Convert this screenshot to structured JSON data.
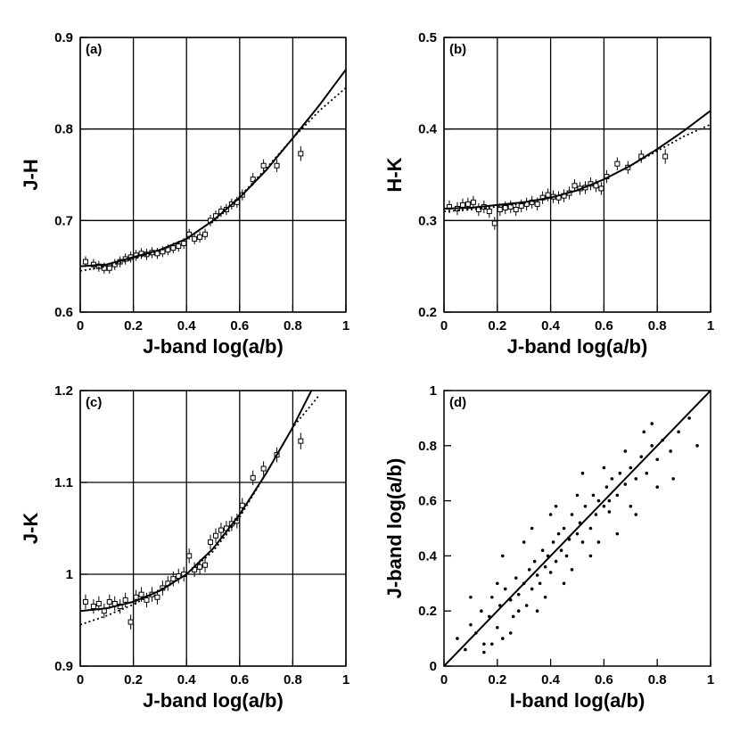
{
  "chart_data": [
    {
      "type": "errorbar",
      "panel_label": "(a)",
      "xlabel": "J-band log(a/b)",
      "ylabel": "J-H",
      "xlim": [
        0,
        1
      ],
      "ylim": [
        0.6,
        0.9
      ],
      "xticks": [
        0,
        0.2,
        0.4,
        0.6,
        0.8,
        1
      ],
      "yticks": [
        0.6,
        0.7,
        0.8,
        0.9
      ],
      "grid": true,
      "color": "#000000",
      "series": [
        {
          "style": "errorbar",
          "x": [
            0.02,
            0.05,
            0.07,
            0.09,
            0.11,
            0.13,
            0.15,
            0.17,
            0.19,
            0.21,
            0.23,
            0.25,
            0.27,
            0.29,
            0.31,
            0.33,
            0.35,
            0.37,
            0.39,
            0.41,
            0.43,
            0.45,
            0.47,
            0.49,
            0.51,
            0.53,
            0.55,
            0.57,
            0.59,
            0.61,
            0.65,
            0.69,
            0.74,
            0.83
          ],
          "values": [
            0.655,
            0.652,
            0.65,
            0.648,
            0.648,
            0.652,
            0.655,
            0.658,
            0.66,
            0.662,
            0.664,
            0.663,
            0.665,
            0.664,
            0.666,
            0.668,
            0.67,
            0.672,
            0.675,
            0.685,
            0.68,
            0.682,
            0.685,
            0.7,
            0.705,
            0.71,
            0.712,
            0.718,
            0.72,
            0.728,
            0.745,
            0.76,
            0.76,
            0.773
          ],
          "errors": [
            0.006,
            0.006,
            0.006,
            0.006,
            0.006,
            0.006,
            0.006,
            0.006,
            0.006,
            0.006,
            0.006,
            0.006,
            0.006,
            0.006,
            0.006,
            0.006,
            0.006,
            0.006,
            0.006,
            0.006,
            0.006,
            0.006,
            0.006,
            0.006,
            0.006,
            0.006,
            0.006,
            0.006,
            0.006,
            0.006,
            0.007,
            0.007,
            0.007,
            0.008
          ]
        },
        {
          "style": "solid",
          "x": [
            0,
            0.1,
            0.2,
            0.3,
            0.4,
            0.5,
            0.6,
            0.7,
            0.8,
            0.9,
            1
          ],
          "values": [
            0.65,
            0.652,
            0.66,
            0.668,
            0.68,
            0.7,
            0.725,
            0.755,
            0.79,
            0.826,
            0.865
          ]
        },
        {
          "style": "dotted",
          "x": [
            0,
            0.1,
            0.2,
            0.3,
            0.4,
            0.5,
            0.6,
            0.7,
            0.8,
            0.9,
            1
          ],
          "values": [
            0.645,
            0.65,
            0.658,
            0.667,
            0.68,
            0.7,
            0.726,
            0.757,
            0.79,
            0.82,
            0.845
          ]
        }
      ]
    },
    {
      "type": "errorbar",
      "panel_label": "(b)",
      "xlabel": "J-band log(a/b)",
      "ylabel": "H-K",
      "xlim": [
        0,
        1
      ],
      "ylim": [
        0.2,
        0.5
      ],
      "xticks": [
        0,
        0.2,
        0.4,
        0.6,
        0.8,
        1
      ],
      "yticks": [
        0.2,
        0.3,
        0.4,
        0.5
      ],
      "grid": true,
      "color": "#000000",
      "series": [
        {
          "style": "errorbar",
          "x": [
            0.02,
            0.05,
            0.07,
            0.09,
            0.11,
            0.13,
            0.15,
            0.17,
            0.19,
            0.21,
            0.23,
            0.25,
            0.27,
            0.29,
            0.31,
            0.33,
            0.35,
            0.37,
            0.39,
            0.41,
            0.43,
            0.45,
            0.47,
            0.49,
            0.51,
            0.53,
            0.55,
            0.57,
            0.59,
            0.61,
            0.65,
            0.69,
            0.74,
            0.83
          ],
          "values": [
            0.315,
            0.313,
            0.317,
            0.318,
            0.32,
            0.312,
            0.315,
            0.31,
            0.297,
            0.312,
            0.314,
            0.315,
            0.312,
            0.316,
            0.318,
            0.32,
            0.318,
            0.325,
            0.328,
            0.326,
            0.325,
            0.327,
            0.33,
            0.338,
            0.335,
            0.336,
            0.34,
            0.338,
            0.335,
            0.348,
            0.362,
            0.358,
            0.37,
            0.37
          ],
          "errors": [
            0.007,
            0.007,
            0.007,
            0.007,
            0.007,
            0.007,
            0.007,
            0.007,
            0.007,
            0.007,
            0.007,
            0.007,
            0.007,
            0.007,
            0.007,
            0.007,
            0.007,
            0.007,
            0.007,
            0.007,
            0.007,
            0.007,
            0.007,
            0.007,
            0.007,
            0.007,
            0.007,
            0.007,
            0.007,
            0.007,
            0.007,
            0.007,
            0.007,
            0.008
          ]
        },
        {
          "style": "solid",
          "x": [
            0,
            0.1,
            0.2,
            0.3,
            0.4,
            0.5,
            0.6,
            0.7,
            0.8,
            0.9,
            1
          ],
          "values": [
            0.313,
            0.314,
            0.317,
            0.32,
            0.325,
            0.333,
            0.345,
            0.36,
            0.378,
            0.398,
            0.42
          ]
        },
        {
          "style": "dotted",
          "x": [
            0,
            0.1,
            0.2,
            0.3,
            0.4,
            0.5,
            0.6,
            0.7,
            0.8,
            0.9,
            1
          ],
          "values": [
            0.31,
            0.312,
            0.315,
            0.319,
            0.325,
            0.333,
            0.345,
            0.36,
            0.376,
            0.392,
            0.405
          ]
        }
      ]
    },
    {
      "type": "errorbar",
      "panel_label": "(c)",
      "xlabel": "J-band log(a/b)",
      "ylabel": "J-K",
      "xlim": [
        0,
        1
      ],
      "ylim": [
        0.9,
        1.2
      ],
      "xticks": [
        0,
        0.2,
        0.4,
        0.6,
        0.8,
        1
      ],
      "yticks": [
        0.9,
        1,
        1.1,
        1.2
      ],
      "grid": true,
      "color": "#000000",
      "series": [
        {
          "style": "errorbar",
          "x": [
            0.02,
            0.05,
            0.07,
            0.09,
            0.11,
            0.13,
            0.15,
            0.17,
            0.19,
            0.21,
            0.23,
            0.25,
            0.27,
            0.29,
            0.31,
            0.33,
            0.35,
            0.37,
            0.39,
            0.41,
            0.43,
            0.45,
            0.47,
            0.49,
            0.51,
            0.53,
            0.55,
            0.57,
            0.59,
            0.61,
            0.65,
            0.69,
            0.74,
            0.83
          ],
          "values": [
            0.97,
            0.965,
            0.968,
            0.96,
            0.97,
            0.968,
            0.965,
            0.972,
            0.948,
            0.975,
            0.978,
            0.972,
            0.978,
            0.975,
            0.985,
            0.99,
            0.995,
            0.998,
            1.0,
            1.02,
            1.005,
            1.008,
            1.01,
            1.035,
            1.042,
            1.048,
            1.05,
            1.055,
            1.058,
            1.075,
            1.105,
            1.115,
            1.13,
            1.145
          ],
          "errors": [
            0.008,
            0.008,
            0.008,
            0.008,
            0.008,
            0.008,
            0.008,
            0.008,
            0.008,
            0.008,
            0.008,
            0.008,
            0.008,
            0.008,
            0.008,
            0.008,
            0.008,
            0.008,
            0.008,
            0.008,
            0.008,
            0.008,
            0.008,
            0.008,
            0.008,
            0.008,
            0.008,
            0.008,
            0.008,
            0.008,
            0.008,
            0.008,
            0.008,
            0.009
          ]
        },
        {
          "style": "solid",
          "x": [
            0,
            0.1,
            0.2,
            0.3,
            0.4,
            0.5,
            0.6,
            0.7,
            0.8,
            0.87
          ],
          "values": [
            0.96,
            0.963,
            0.97,
            0.982,
            1.0,
            1.028,
            1.065,
            1.11,
            1.16,
            1.2
          ]
        },
        {
          "style": "dotted",
          "x": [
            0,
            0.1,
            0.2,
            0.3,
            0.4,
            0.5,
            0.6,
            0.7,
            0.8,
            0.9
          ],
          "values": [
            0.945,
            0.955,
            0.967,
            0.983,
            1.0,
            1.025,
            1.062,
            1.11,
            1.16,
            1.195
          ]
        }
      ]
    },
    {
      "type": "scatter",
      "panel_label": "(d)",
      "xlabel": "I-band log(a/b)",
      "ylabel": "J-band log(a/b)",
      "xlim": [
        0,
        1
      ],
      "ylim": [
        0,
        1
      ],
      "xticks": [
        0,
        0.2,
        0.4,
        0.6,
        0.8,
        1
      ],
      "yticks": [
        0,
        0.2,
        0.4,
        0.6,
        0.8,
        1
      ],
      "grid": false,
      "color": "#000000",
      "series": [
        {
          "style": "points",
          "x": [
            0.05,
            0.08,
            0.1,
            0.12,
            0.14,
            0.15,
            0.17,
            0.18,
            0.2,
            0.21,
            0.22,
            0.23,
            0.25,
            0.26,
            0.27,
            0.28,
            0.3,
            0.31,
            0.32,
            0.33,
            0.34,
            0.35,
            0.36,
            0.37,
            0.38,
            0.39,
            0.4,
            0.41,
            0.42,
            0.43,
            0.44,
            0.45,
            0.46,
            0.47,
            0.48,
            0.5,
            0.51,
            0.52,
            0.53,
            0.55,
            0.56,
            0.57,
            0.58,
            0.6,
            0.61,
            0.62,
            0.63,
            0.65,
            0.66,
            0.68,
            0.7,
            0.72,
            0.74,
            0.76,
            0.78,
            0.8,
            0.82,
            0.85,
            0.88,
            0.92,
            0.1,
            0.15,
            0.2,
            0.25,
            0.3,
            0.35,
            0.4,
            0.45,
            0.5,
            0.55,
            0.6,
            0.65,
            0.7,
            0.75,
            0.8,
            0.18,
            0.22,
            0.28,
            0.33,
            0.38,
            0.42,
            0.48,
            0.52,
            0.58,
            0.62,
            0.68,
            0.72,
            0.78,
            0.86,
            0.95
          ],
          "values": [
            0.1,
            0.06,
            0.15,
            0.12,
            0.2,
            0.08,
            0.18,
            0.25,
            0.14,
            0.22,
            0.1,
            0.28,
            0.24,
            0.18,
            0.32,
            0.26,
            0.3,
            0.22,
            0.35,
            0.28,
            0.38,
            0.33,
            0.3,
            0.42,
            0.36,
            0.4,
            0.34,
            0.45,
            0.38,
            0.48,
            0.42,
            0.5,
            0.4,
            0.46,
            0.55,
            0.48,
            0.52,
            0.45,
            0.58,
            0.5,
            0.62,
            0.55,
            0.6,
            0.58,
            0.65,
            0.56,
            0.68,
            0.62,
            0.7,
            0.66,
            0.72,
            0.68,
            0.76,
            0.7,
            0.8,
            0.75,
            0.82,
            0.78,
            0.85,
            0.9,
            0.25,
            0.05,
            0.3,
            0.12,
            0.45,
            0.2,
            0.55,
            0.3,
            0.62,
            0.4,
            0.72,
            0.48,
            0.58,
            0.85,
            0.65,
            0.08,
            0.4,
            0.2,
            0.5,
            0.25,
            0.58,
            0.35,
            0.7,
            0.45,
            0.6,
            0.78,
            0.55,
            0.88,
            0.68,
            0.8
          ]
        },
        {
          "style": "solid",
          "x": [
            0,
            1
          ],
          "values": [
            0,
            1
          ]
        }
      ]
    }
  ]
}
